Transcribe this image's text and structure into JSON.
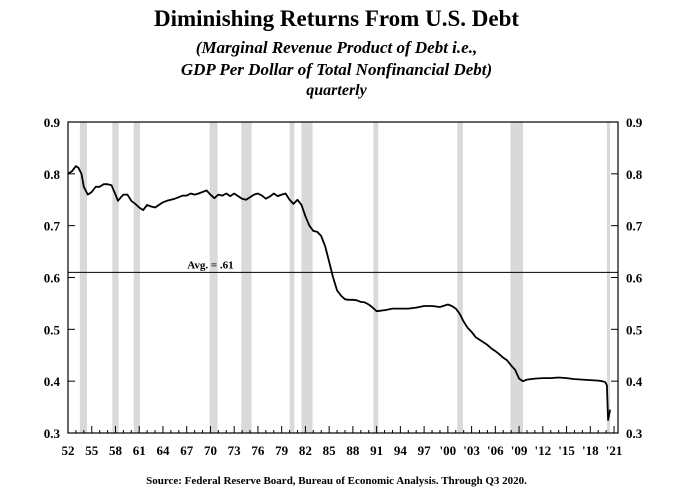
{
  "chart_data": {
    "type": "line",
    "title": "Diminishing Returns From U.S. Debt",
    "subtitle_lines": [
      "(Marginal Revenue Product of Debt i.e.,",
      "GDP Per Dollar of Total Nonfinancial Debt)",
      "quarterly"
    ],
    "source": "Source:  Federal Reserve Board, Bureau of Economic Analysis.  Through Q3 2020.",
    "xlim": [
      1952,
      2021.5
    ],
    "ylim": [
      0.3,
      0.9
    ],
    "y_ticks": [
      0.3,
      0.4,
      0.5,
      0.6,
      0.7,
      0.8,
      0.9
    ],
    "y_tick_labels": [
      "0.3",
      "0.4",
      "0.5",
      "0.6",
      "0.7",
      "0.8",
      "0.9"
    ],
    "x_ticks": [
      1952,
      1955,
      1958,
      1961,
      1964,
      1967,
      1970,
      1973,
      1976,
      1979,
      1982,
      1985,
      1988,
      1991,
      1994,
      1997,
      2000,
      2003,
      2006,
      2009,
      2012,
      2015,
      2018,
      2021
    ],
    "x_tick_labels": [
      "52",
      "55",
      "58",
      "61",
      "64",
      "67",
      "70",
      "73",
      "76",
      "79",
      "82",
      "85",
      "88",
      "91",
      "94",
      "97",
      "'00",
      "'03",
      "'06",
      "'09",
      "'12",
      "'15",
      "'18",
      "'21"
    ],
    "grid": false,
    "y_axis_both_sides": true,
    "recession_color": "#d9d9d9",
    "line_color": "#000000",
    "recessions": [
      [
        1953.5,
        1954.4
      ],
      [
        1957.6,
        1958.4
      ],
      [
        1960.3,
        1961.1
      ],
      [
        1969.9,
        1970.9
      ],
      [
        1973.9,
        1975.2
      ],
      [
        1980.0,
        1980.6
      ],
      [
        1981.5,
        1982.9
      ],
      [
        1990.6,
        1991.2
      ],
      [
        2001.2,
        2001.9
      ],
      [
        2007.9,
        2009.5
      ],
      [
        2020.1,
        2020.5
      ]
    ],
    "reference_line": {
      "value": 0.61,
      "label": "Avg. = .61"
    },
    "series": [
      {
        "x": [
          1952.0,
          1952.5,
          1953.0,
          1953.3,
          1953.7,
          1954.0,
          1954.5,
          1955.0,
          1955.5,
          1956.0,
          1956.5,
          1957.0,
          1957.5,
          1958.0,
          1958.3,
          1958.7,
          1959.0,
          1959.5,
          1960.0,
          1960.5,
          1961.0,
          1961.5,
          1962.0,
          1962.5,
          1963.0,
          1963.5,
          1964.0,
          1964.5,
          1965.0,
          1965.5,
          1966.0,
          1966.5,
          1967.0,
          1967.5,
          1968.0,
          1968.5,
          1969.0,
          1969.5,
          1970.0,
          1970.5,
          1971.0,
          1971.5,
          1972.0,
          1972.5,
          1973.0,
          1973.5,
          1974.0,
          1974.5,
          1975.0,
          1975.5,
          1976.0,
          1976.5,
          1977.0,
          1977.5,
          1978.0,
          1978.5,
          1979.0,
          1979.5,
          1980.0,
          1980.5,
          1981.0,
          1981.5,
          1982.0,
          1982.5,
          1983.0,
          1983.5,
          1984.0,
          1984.5,
          1985.0,
          1985.5,
          1986.0,
          1986.5,
          1987.0,
          1987.5,
          1988.0,
          1988.5,
          1989.0,
          1989.5,
          1990.0,
          1990.5,
          1991.0,
          1991.5,
          1992.0,
          1993.0,
          1994.0,
          1995.0,
          1996.0,
          1997.0,
          1998.0,
          1999.0,
          2000.0,
          2000.5,
          2001.0,
          2001.5,
          2002.0,
          2002.5,
          2003.0,
          2003.5,
          2004.0,
          2004.5,
          2005.0,
          2005.5,
          2006.0,
          2006.5,
          2007.0,
          2007.5,
          2008.0,
          2008.5,
          2009.0,
          2009.5,
          2010.0,
          2011.0,
          2012.0,
          2013.0,
          2014.0,
          2015.0,
          2016.0,
          2017.0,
          2018.0,
          2019.0,
          2019.5,
          2019.9,
          2020.1,
          2020.25,
          2020.5
        ],
        "y": [
          0.8,
          0.805,
          0.815,
          0.812,
          0.8,
          0.775,
          0.76,
          0.765,
          0.775,
          0.775,
          0.78,
          0.78,
          0.778,
          0.76,
          0.748,
          0.755,
          0.76,
          0.76,
          0.748,
          0.742,
          0.735,
          0.73,
          0.74,
          0.737,
          0.735,
          0.74,
          0.745,
          0.748,
          0.75,
          0.752,
          0.755,
          0.758,
          0.758,
          0.762,
          0.76,
          0.762,
          0.765,
          0.768,
          0.76,
          0.753,
          0.76,
          0.758,
          0.762,
          0.757,
          0.762,
          0.757,
          0.752,
          0.75,
          0.755,
          0.76,
          0.762,
          0.758,
          0.752,
          0.756,
          0.762,
          0.757,
          0.76,
          0.762,
          0.75,
          0.742,
          0.75,
          0.74,
          0.718,
          0.7,
          0.69,
          0.688,
          0.68,
          0.66,
          0.63,
          0.6,
          0.575,
          0.565,
          0.558,
          0.557,
          0.557,
          0.556,
          0.553,
          0.552,
          0.548,
          0.542,
          0.535,
          0.536,
          0.537,
          0.54,
          0.54,
          0.54,
          0.542,
          0.545,
          0.545,
          0.543,
          0.548,
          0.545,
          0.54,
          0.53,
          0.515,
          0.503,
          0.495,
          0.485,
          0.48,
          0.475,
          0.47,
          0.463,
          0.458,
          0.452,
          0.445,
          0.44,
          0.43,
          0.422,
          0.405,
          0.4,
          0.403,
          0.405,
          0.406,
          0.406,
          0.407,
          0.406,
          0.404,
          0.403,
          0.402,
          0.401,
          0.4,
          0.398,
          0.392,
          0.325,
          0.345
        ]
      }
    ]
  }
}
